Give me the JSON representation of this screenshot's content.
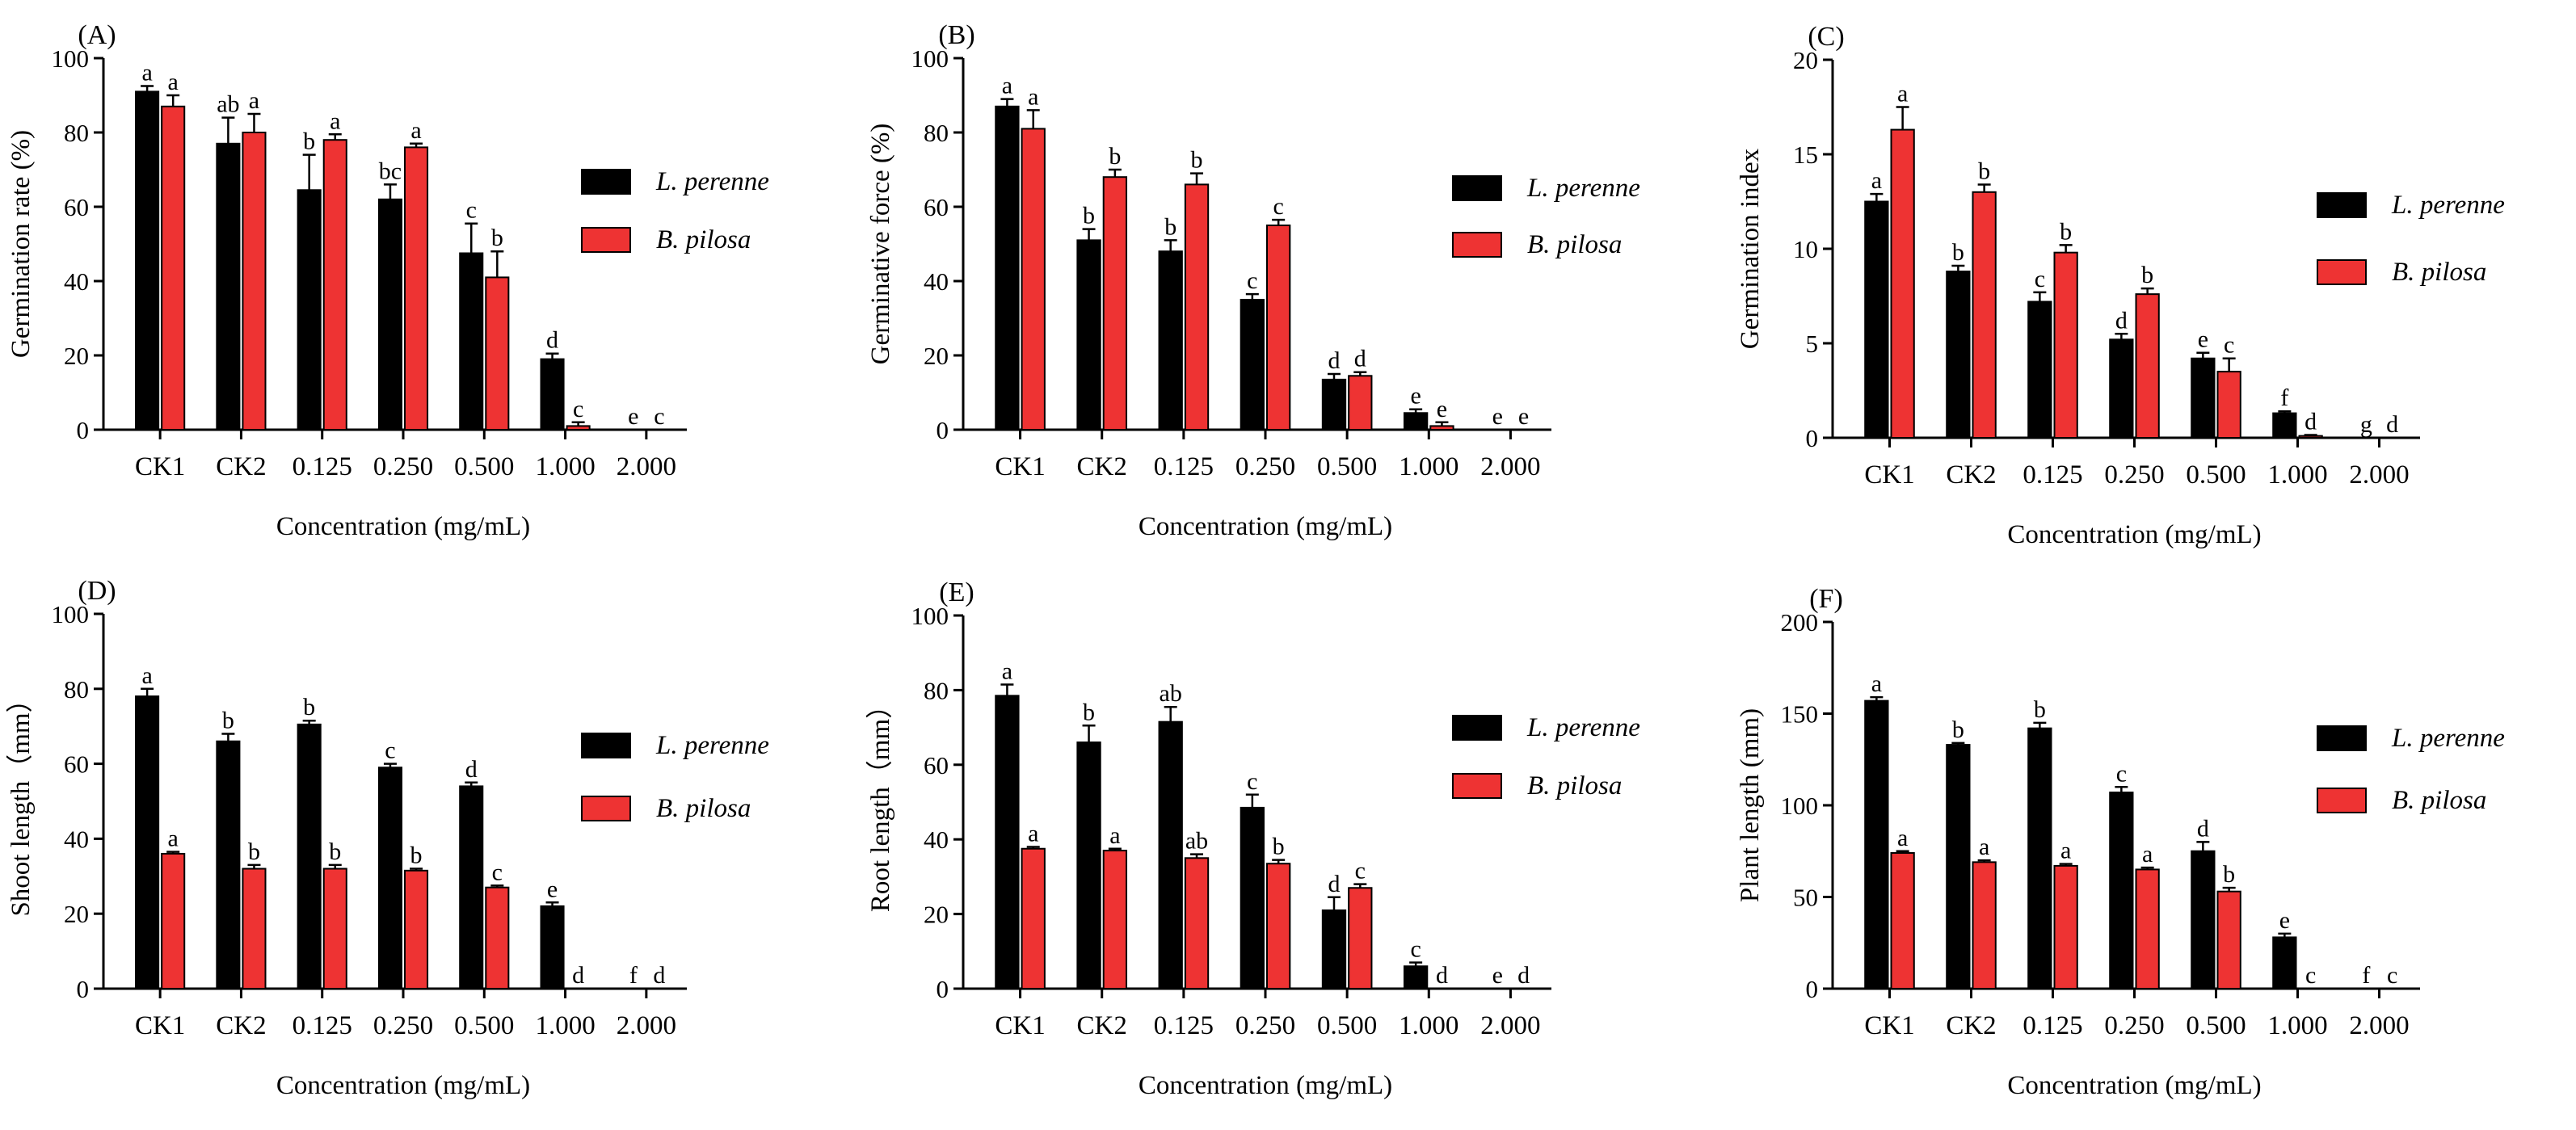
{
  "colors": {
    "l_perenne": "#000000",
    "b_pilosa": "#ee3333"
  },
  "chart_data": [
    {
      "id": "A",
      "type": "bar",
      "label": "(A)",
      "xlabel": "Concentration (mg/mL)",
      "ylabel": "Germination rate (%)",
      "ylim": [
        0,
        100
      ],
      "yticks": [
        "0",
        "20",
        "40",
        "60",
        "80",
        "100"
      ],
      "categories": [
        "CK1",
        "CK2",
        "0.125",
        "0.250",
        "0.500",
        "1.000",
        "2.000"
      ],
      "legend": [
        "L. perenne",
        "B. pilosa"
      ],
      "series": [
        {
          "name": "L. perenne",
          "values": [
            91,
            77,
            64.5,
            62,
            47.5,
            19,
            0
          ],
          "errors": [
            1.5,
            7,
            9.5,
            4,
            8,
            1.5,
            0
          ],
          "letters": [
            "a",
            "ab",
            "b",
            "bc",
            "c",
            "d",
            "e"
          ]
        },
        {
          "name": "B. pilosa",
          "values": [
            87,
            80,
            78,
            76,
            41,
            1,
            0
          ],
          "errors": [
            3,
            5,
            1.5,
            1,
            7,
            1,
            0
          ],
          "letters": [
            "a",
            "a",
            "a",
            "a",
            "b",
            "c",
            "c"
          ]
        }
      ]
    },
    {
      "id": "B",
      "type": "bar",
      "label": "(B)",
      "xlabel": "Concentration (mg/mL)",
      "ylabel": "Germinative force (%)",
      "ylim": [
        0,
        100
      ],
      "yticks": [
        "0",
        "20",
        "40",
        "60",
        "80",
        "100"
      ],
      "categories": [
        "CK1",
        "CK2",
        "0.125",
        "0.250",
        "0.500",
        "1.000",
        "2.000"
      ],
      "legend": [
        "L. perenne",
        "B. pilosa"
      ],
      "series": [
        {
          "name": "L. perenne",
          "values": [
            87,
            51,
            48,
            35,
            13.5,
            4.5,
            0
          ],
          "errors": [
            2,
            3,
            3,
            1.5,
            1.5,
            1,
            0
          ],
          "letters": [
            "a",
            "b",
            "b",
            "c",
            "d",
            "e",
            "e"
          ]
        },
        {
          "name": "B. pilosa",
          "values": [
            81,
            68,
            66,
            55,
            14.5,
            1,
            0
          ],
          "errors": [
            5,
            2,
            3,
            1.5,
            1,
            1,
            0
          ],
          "letters": [
            "a",
            "b",
            "b",
            "c",
            "d",
            "e",
            "e"
          ]
        }
      ]
    },
    {
      "id": "C",
      "type": "bar",
      "label": "(C)",
      "xlabel": "Concentration (mg/mL)",
      "ylabel": "Germination index",
      "ylim": [
        0,
        20
      ],
      "yticks": [
        "0",
        "5",
        "10",
        "15",
        "20"
      ],
      "categories": [
        "CK1",
        "CK2",
        "0.125",
        "0.250",
        "0.500",
        "1.000",
        "2.000"
      ],
      "legend": [
        "L. perenne",
        "B. pilosa"
      ],
      "series": [
        {
          "name": "L. perenne",
          "values": [
            12.5,
            8.8,
            7.2,
            5.2,
            4.2,
            1.3,
            0
          ],
          "errors": [
            0.4,
            0.3,
            0.5,
            0.3,
            0.3,
            0.1,
            0
          ],
          "letters": [
            "a",
            "b",
            "c",
            "d",
            "e",
            "f",
            "g"
          ]
        },
        {
          "name": "B. pilosa",
          "values": [
            16.3,
            13.0,
            9.8,
            7.6,
            3.5,
            0.1,
            0
          ],
          "errors": [
            1.2,
            0.4,
            0.4,
            0.3,
            0.7,
            0.05,
            0
          ],
          "letters": [
            "a",
            "b",
            "b",
            "b",
            "c",
            "d",
            "d"
          ]
        }
      ]
    },
    {
      "id": "D",
      "type": "bar",
      "label": "(D)",
      "xlabel": "Concentration (mg/mL)",
      "ylabel": "Shoot length（mm）",
      "ylim": [
        0,
        100
      ],
      "yticks": [
        "0",
        "20",
        "40",
        "60",
        "80",
        "100"
      ],
      "categories": [
        "CK1",
        "CK2",
        "0.125",
        "0.250",
        "0.500",
        "1.000",
        "2.000"
      ],
      "legend": [
        "L. perenne",
        "B. pilosa"
      ],
      "series": [
        {
          "name": "L. perenne",
          "values": [
            78,
            66,
            70.5,
            59,
            54,
            22,
            0
          ],
          "errors": [
            2,
            2,
            1,
            1,
            1,
            1,
            0
          ],
          "letters": [
            "a",
            "b",
            "b",
            "c",
            "d",
            "e",
            "f"
          ]
        },
        {
          "name": "B. pilosa",
          "values": [
            36,
            32,
            32,
            31.5,
            27,
            0,
            0
          ],
          "errors": [
            0.5,
            1,
            1,
            0.5,
            0.5,
            0,
            0
          ],
          "letters": [
            "a",
            "b",
            "b",
            "b",
            "c",
            "d",
            "d"
          ]
        }
      ]
    },
    {
      "id": "E",
      "type": "bar",
      "label": "(E)",
      "xlabel": "Concentration (mg/mL)",
      "ylabel": "Root length（mm）",
      "ylim": [
        0,
        100
      ],
      "yticks": [
        "0",
        "20",
        "40",
        "60",
        "80",
        "100"
      ],
      "categories": [
        "CK1",
        "CK2",
        "0.125",
        "0.250",
        "0.500",
        "1.000",
        "2.000"
      ],
      "legend": [
        "L. perenne",
        "B. pilosa"
      ],
      "series": [
        {
          "name": "L. perenne",
          "values": [
            78.5,
            66,
            71.5,
            48.5,
            21,
            6,
            0
          ],
          "errors": [
            3,
            4.5,
            4,
            3.5,
            3.5,
            1,
            0
          ],
          "letters": [
            "a",
            "b",
            "ab",
            "c",
            "d",
            "c",
            "e"
          ]
        },
        {
          "name": "B. pilosa",
          "values": [
            37.5,
            37,
            35,
            33.5,
            27,
            0,
            0
          ],
          "errors": [
            0.5,
            0.5,
            1,
            1,
            1,
            0,
            0
          ],
          "letters": [
            "a",
            "a",
            "ab",
            "b",
            "c",
            "d",
            "d"
          ]
        }
      ]
    },
    {
      "id": "F",
      "type": "bar",
      "label": "(F)",
      "xlabel": "Concentration (mg/mL)",
      "ylabel": "Plant length (mm)",
      "ylim": [
        0,
        200
      ],
      "yticks": [
        "0",
        "50",
        "100",
        "150",
        "200"
      ],
      "categories": [
        "CK1",
        "CK2",
        "0.125",
        "0.250",
        "0.500",
        "1.000",
        "2.000"
      ],
      "legend": [
        "L. perenne",
        "B. pilosa"
      ],
      "series": [
        {
          "name": "L. perenne",
          "values": [
            157,
            133,
            142,
            107,
            75,
            28,
            0
          ],
          "errors": [
            2,
            1,
            3,
            3,
            5,
            2,
            0
          ],
          "letters": [
            "a",
            "b",
            "b",
            "c",
            "d",
            "e",
            "f"
          ]
        },
        {
          "name": "B. pilosa",
          "values": [
            74,
            69,
            67,
            65,
            53,
            0,
            0
          ],
          "errors": [
            1,
            1,
            1,
            1,
            2,
            0,
            0
          ],
          "letters": [
            "a",
            "a",
            "a",
            "a",
            "b",
            "c",
            "c"
          ]
        }
      ]
    }
  ]
}
